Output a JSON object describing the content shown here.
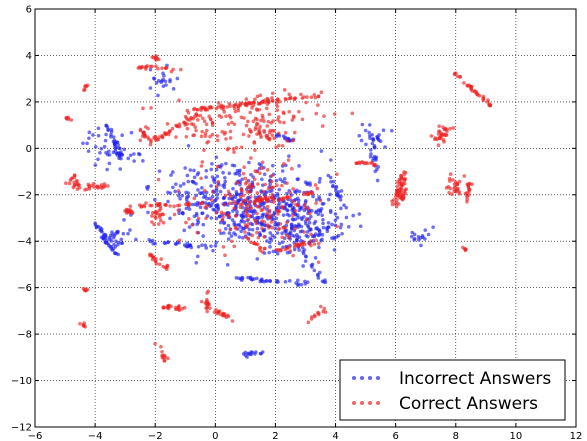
{
  "chart_data": {
    "type": "scatter",
    "title": "",
    "xlabel": "",
    "ylabel": "",
    "xlim": [
      -6,
      12
    ],
    "ylim": [
      -12,
      6
    ],
    "x_ticks": [
      "−6",
      "−4",
      "−2",
      "0",
      "2",
      "4",
      "6",
      "8",
      "10",
      "12"
    ],
    "y_ticks": [
      "6",
      "4",
      "2",
      "0",
      "−2",
      "−4",
      "−6",
      "−8",
      "−10",
      "−12"
    ],
    "grid": true,
    "legend_position": "bottom-right",
    "series": [
      {
        "name": "Incorrect Answers",
        "color": "#2222ee",
        "clusters": [
          {
            "center": [
              1.5,
              -2.5
            ],
            "spread": [
              2.2,
              1.8
            ],
            "count": 420
          },
          {
            "center": [
              3.0,
              -3.5
            ],
            "spread": [
              1.2,
              1.2
            ],
            "count": 120
          },
          {
            "center": [
              -0.5,
              -2.0
            ],
            "spread": [
              1.5,
              1.5
            ],
            "count": 90
          },
          {
            "center": [
              -3.5,
              0.0
            ],
            "spread": [
              1.0,
              1.0
            ],
            "count": 40
          },
          {
            "center": [
              5.2,
              0.5
            ],
            "spread": [
              0.6,
              0.6
            ],
            "count": 25
          },
          {
            "center": [
              -3.2,
              -3.8
            ],
            "spread": [
              0.5,
              0.6
            ],
            "count": 25
          },
          {
            "center": [
              6.8,
              -3.8
            ],
            "spread": [
              0.5,
              0.5
            ],
            "count": 15
          },
          {
            "center": [
              -1.8,
              3.0
            ],
            "spread": [
              0.5,
              0.6
            ],
            "count": 20
          }
        ],
        "segments": [
          {
            "from": [
              -3.6,
              1.0
            ],
            "to": [
              -3.1,
              -0.5
            ],
            "count": 35
          },
          {
            "from": [
              -4.0,
              -3.2
            ],
            "to": [
              -3.3,
              -4.6
            ],
            "count": 35
          },
          {
            "from": [
              -2.3,
              -4.0
            ],
            "to": [
              0.0,
              -4.3
            ],
            "count": 30
          },
          {
            "from": [
              0.5,
              -5.6
            ],
            "to": [
              3.0,
              -5.8
            ],
            "count": 35
          },
          {
            "from": [
              2.3,
              -3.5
            ],
            "to": [
              3.8,
              -6.0
            ],
            "count": 25
          },
          {
            "from": [
              0.9,
              -8.9
            ],
            "to": [
              1.6,
              -8.8
            ],
            "count": 15
          },
          {
            "from": [
              5.4,
              -1.2
            ],
            "to": [
              5.2,
              0.2
            ],
            "count": 15
          },
          {
            "from": [
              3.8,
              -1.2
            ],
            "to": [
              4.3,
              -2.5
            ],
            "count": 20
          },
          {
            "from": [
              2.0,
              0.6
            ],
            "to": [
              2.8,
              0.2
            ],
            "count": 15
          }
        ]
      },
      {
        "name": "Correct Answers",
        "color": "#ee2222",
        "clusters": [
          {
            "center": [
              1.5,
              -2.5
            ],
            "spread": [
              2.2,
              1.8
            ],
            "count": 180
          },
          {
            "center": [
              0.8,
              1.0
            ],
            "spread": [
              2.5,
              1.3
            ],
            "count": 170
          },
          {
            "center": [
              6.2,
              -1.8
            ],
            "spread": [
              0.15,
              0.6
            ],
            "count": 45
          },
          {
            "center": [
              7.5,
              0.6
            ],
            "spread": [
              0.3,
              0.4
            ],
            "count": 30
          },
          {
            "center": [
              8.0,
              -1.7
            ],
            "spread": [
              0.3,
              0.6
            ],
            "count": 25
          },
          {
            "center": [
              -4.7,
              -1.5
            ],
            "spread": [
              0.3,
              0.4
            ],
            "count": 20
          },
          {
            "center": [
              -2.9,
              -2.7
            ],
            "spread": [
              0.2,
              0.2
            ],
            "count": 15
          },
          {
            "center": [
              -1.9,
              -2.9
            ],
            "spread": [
              0.3,
              0.3
            ],
            "count": 20
          },
          {
            "center": [
              -0.3,
              -6.6
            ],
            "spread": [
              0.15,
              0.4
            ],
            "count": 15
          },
          {
            "center": [
              -4.3,
              2.6
            ],
            "spread": [
              0.1,
              0.2
            ],
            "count": 6
          },
          {
            "center": [
              -4.3,
              -6.1
            ],
            "spread": [
              0.1,
              0.1
            ],
            "count": 6
          },
          {
            "center": [
              -4.4,
              -7.6
            ],
            "spread": [
              0.1,
              0.1
            ],
            "count": 6
          },
          {
            "center": [
              -4.9,
              1.3
            ],
            "spread": [
              0.1,
              0.1
            ],
            "count": 6
          },
          {
            "center": [
              8.3,
              -4.3
            ],
            "spread": [
              0.1,
              0.1
            ],
            "count": 5
          },
          {
            "center": [
              -2.0,
              3.9
            ],
            "spread": [
              0.1,
              0.1
            ],
            "count": 8
          }
        ],
        "segments": [
          {
            "from": [
              -1.0,
              1.6
            ],
            "to": [
              3.5,
              2.3
            ],
            "count": 90
          },
          {
            "from": [
              -2.2,
              0.2
            ],
            "to": [
              -0.5,
              1.5
            ],
            "count": 35
          },
          {
            "from": [
              8.0,
              3.2
            ],
            "to": [
              9.2,
              1.8
            ],
            "count": 35
          },
          {
            "from": [
              -0.3,
              -6.8
            ],
            "to": [
              0.6,
              -7.4
            ],
            "count": 20
          },
          {
            "from": [
              -1.7,
              -6.8
            ],
            "to": [
              -1.0,
              -6.9
            ],
            "count": 20
          },
          {
            "from": [
              -2.0,
              -8.4
            ],
            "to": [
              -1.6,
              -9.2
            ],
            "count": 12
          },
          {
            "from": [
              -2.5,
              -2.5
            ],
            "to": [
              -0.4,
              -2.4
            ],
            "count": 30
          },
          {
            "from": [
              -2.6,
              3.5
            ],
            "to": [
              -1.2,
              3.4
            ],
            "count": 20
          },
          {
            "from": [
              0.8,
              -2.4
            ],
            "to": [
              3.2,
              -1.9
            ],
            "count": 30
          },
          {
            "from": [
              2.0,
              -4.4
            ],
            "to": [
              3.5,
              -4.0
            ],
            "count": 25
          },
          {
            "from": [
              -2.3,
              -4.5
            ],
            "to": [
              -1.6,
              -5.2
            ],
            "count": 20
          },
          {
            "from": [
              -4.3,
              -1.7
            ],
            "to": [
              -3.6,
              -1.6
            ],
            "count": 20
          },
          {
            "from": [
              -2.5,
              0.8
            ],
            "to": [
              -2.1,
              0.2
            ],
            "count": 15
          },
          {
            "from": [
              1.0,
              -3.8
            ],
            "to": [
              1.6,
              -4.4
            ],
            "count": 15
          },
          {
            "from": [
              3.1,
              -7.4
            ],
            "to": [
              3.6,
              -6.9
            ],
            "count": 12
          },
          {
            "from": [
              5.9,
              -2.5
            ],
            "to": [
              6.3,
              -1.0
            ],
            "count": 20
          },
          {
            "from": [
              4.6,
              -0.6
            ],
            "to": [
              5.4,
              -0.7
            ],
            "count": 15
          },
          {
            "from": [
              8.5,
              -1.4
            ],
            "to": [
              8.3,
              -2.5
            ],
            "count": 18
          }
        ]
      }
    ]
  }
}
